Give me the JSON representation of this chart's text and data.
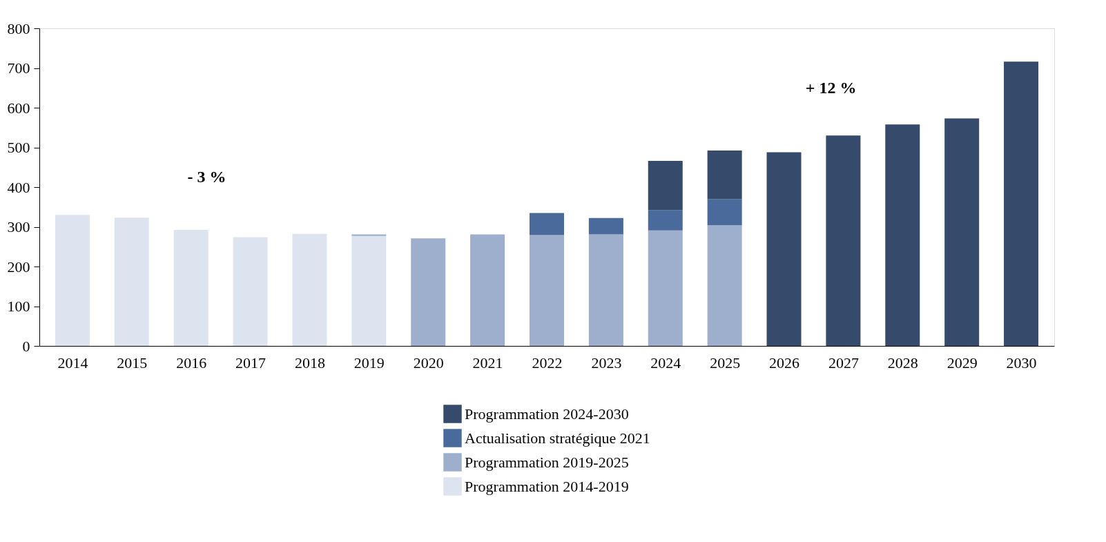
{
  "chart_data": {
    "type": "bar",
    "stacked": true,
    "categories": [
      "2014",
      "2015",
      "2016",
      "2017",
      "2018",
      "2019",
      "2020",
      "2021",
      "2022",
      "2023",
      "2024",
      "2025",
      "2026",
      "2027",
      "2028",
      "2029",
      "2030"
    ],
    "series": [
      {
        "name": "Programmation 2014-2019",
        "color": "#dee4ef",
        "values": [
          330,
          323,
          292,
          274,
          282,
          277,
          null,
          null,
          null,
          null,
          null,
          null,
          null,
          null,
          null,
          null,
          null
        ]
      },
      {
        "name": "Programmation 2019-2025",
        "color": "#9dafcd",
        "values": [
          null,
          null,
          null,
          null,
          null,
          4,
          271,
          281,
          279,
          281,
          291,
          304,
          null,
          null,
          null,
          null,
          null
        ]
      },
      {
        "name": "Actualisation stratégique 2021",
        "color": "#4a6a9b",
        "values": [
          null,
          null,
          null,
          null,
          null,
          null,
          null,
          null,
          56,
          41,
          51,
          66,
          null,
          null,
          null,
          null,
          null
        ]
      },
      {
        "name": "Programmation 2024-2030",
        "color": "#364b6b",
        "values": [
          null,
          null,
          null,
          null,
          null,
          null,
          null,
          null,
          null,
          null,
          124,
          122,
          488,
          530,
          558,
          573,
          716
        ]
      }
    ],
    "ylim": [
      0,
      800
    ],
    "yticks": [
      0,
      100,
      200,
      300,
      400,
      500,
      600,
      700,
      800
    ],
    "grid": false,
    "legend": "bottom",
    "annotations": [
      "- 3 %",
      "+ 12 %"
    ]
  }
}
